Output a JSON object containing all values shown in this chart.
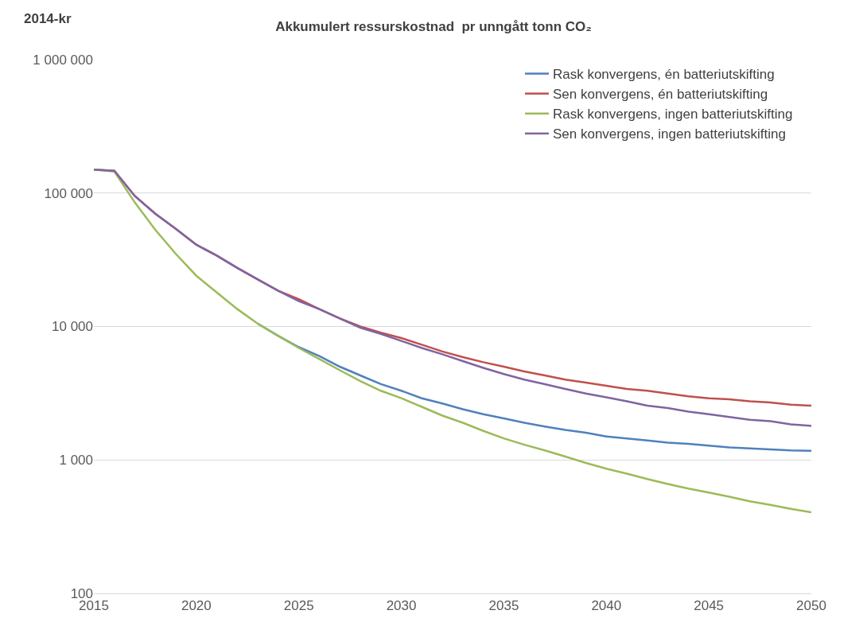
{
  "chart_data": {
    "type": "line",
    "title": "Akkumulert ressurskostnad  pr unngått tonn CO₂",
    "ylabel": "2014-kr",
    "x": [
      2015,
      2016,
      2017,
      2018,
      2019,
      2020,
      2021,
      2022,
      2023,
      2024,
      2025,
      2026,
      2027,
      2028,
      2029,
      2030,
      2031,
      2032,
      2033,
      2034,
      2035,
      2036,
      2037,
      2038,
      2039,
      2040,
      2041,
      2042,
      2043,
      2044,
      2045,
      2046,
      2047,
      2048,
      2049,
      2050
    ],
    "series": [
      {
        "name": "Rask konvergens, én batteriutskifting",
        "color": "#4f81bd",
        "values": [
          null,
          null,
          null,
          null,
          null,
          null,
          null,
          null,
          10500,
          8500,
          7000,
          6000,
          5000,
          4300,
          3700,
          3300,
          2900,
          2650,
          2400,
          2200,
          2050,
          1900,
          1780,
          1680,
          1600,
          1500,
          1450,
          1400,
          1350,
          1320,
          1280,
          1240,
          1220,
          1200,
          1180,
          1170
        ]
      },
      {
        "name": "Sen konvergens, én batteriutskifting",
        "color": "#c0504d",
        "values": [
          150000,
          147000,
          95000,
          70000,
          54000,
          41000,
          34000,
          27500,
          22500,
          18500,
          16000,
          13500,
          11500,
          10000,
          9000,
          8200,
          7300,
          6500,
          5900,
          5400,
          5000,
          4600,
          4300,
          4000,
          3800,
          3600,
          3400,
          3300,
          3150,
          3000,
          2900,
          2850,
          2750,
          2700,
          2600,
          2550
        ]
      },
      {
        "name": "Rask konvergens, ingen batteriutskifting",
        "color": "#9bbb59",
        "values": [
          150000,
          145000,
          85000,
          53000,
          35000,
          24000,
          18000,
          13500,
          10500,
          8500,
          6900,
          5700,
          4700,
          3900,
          3300,
          2900,
          2500,
          2150,
          1900,
          1650,
          1450,
          1300,
          1180,
          1060,
          950,
          860,
          790,
          720,
          660,
          610,
          570,
          530,
          490,
          460,
          430,
          405
        ]
      },
      {
        "name": "Sen konvergens, ingen batteriutskifting",
        "color": "#8064a2",
        "values": [
          150000,
          147000,
          95000,
          70000,
          54000,
          41000,
          34000,
          27500,
          22500,
          18500,
          15500,
          13500,
          11500,
          9800,
          8800,
          7800,
          6900,
          6200,
          5500,
          4900,
          4400,
          4000,
          3700,
          3400,
          3150,
          2950,
          2750,
          2550,
          2450,
          2300,
          2200,
          2100,
          2000,
          1950,
          1850,
          1800
        ]
      }
    ],
    "xlim": [
      2015,
      2050
    ],
    "xticks": [
      2015,
      2020,
      2025,
      2030,
      2035,
      2040,
      2045,
      2050
    ],
    "ylim": [
      100,
      1000000
    ],
    "yticks": [
      {
        "value": 100,
        "label": "100"
      },
      {
        "value": 1000,
        "label": "1 000"
      },
      {
        "value": 10000,
        "label": "10 000"
      },
      {
        "value": 100000,
        "label": "100 000"
      },
      {
        "value": 1000000,
        "label": "1 000 000"
      }
    ],
    "log": true,
    "grid": "y",
    "legend": "top right",
    "marker": "none",
    "line_style": "solid"
  }
}
